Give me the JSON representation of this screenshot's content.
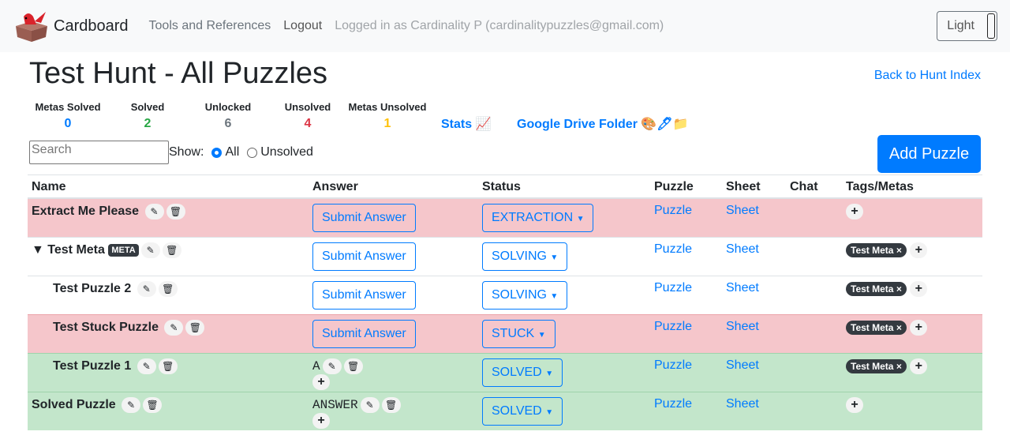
{
  "nav": {
    "brand": "Cardboard",
    "tools": "Tools and References",
    "logout": "Logout",
    "logged_in": "Logged in as Cardinality P (cardinalitypuzzles@gmail.com)",
    "theme": "Light"
  },
  "page": {
    "title": "Test Hunt - All Puzzles",
    "back": "Back to Hunt Index",
    "stats_link": "Stats 📈",
    "drive_link": "Google Drive Folder 🎨🖊📁",
    "add_puzzle": "Add Puzzle"
  },
  "stats": [
    {
      "label": "Metas Solved",
      "value": "0",
      "color": "#007bff"
    },
    {
      "label": "Solved",
      "value": "2",
      "color": "#28a745"
    },
    {
      "label": "Unlocked",
      "value": "6",
      "color": "#6c757d"
    },
    {
      "label": "Unsolved",
      "value": "4",
      "color": "#dc3545"
    },
    {
      "label": "Metas Unsolved",
      "value": "1",
      "color": "#ffc107"
    }
  ],
  "filter": {
    "placeholder": "Search",
    "show": "Show:",
    "all": "All",
    "unsolved": "Unsolved",
    "selected": "All"
  },
  "columns": [
    "Name",
    "Answer",
    "Status",
    "Puzzle",
    "Sheet",
    "Chat",
    "Tags/Metas"
  ],
  "rows": [
    {
      "name": "Extract Me Please",
      "meta": false,
      "indent": false,
      "answer": "",
      "status": "EXTRACTION",
      "tags": [],
      "row_color": "pink"
    },
    {
      "name": "▼ Test Meta",
      "meta": true,
      "meta_label": "META",
      "indent": false,
      "answer": "",
      "status": "SOLVING",
      "tags": [
        "Test Meta"
      ],
      "row_color": "white"
    },
    {
      "name": "Test Puzzle 2",
      "meta": false,
      "indent": true,
      "answer": "",
      "status": "SOLVING",
      "tags": [
        "Test Meta"
      ],
      "row_color": "white"
    },
    {
      "name": "Test Stuck Puzzle",
      "meta": false,
      "indent": true,
      "answer": "",
      "status": "STUCK",
      "tags": [
        "Test Meta"
      ],
      "row_color": "pink"
    },
    {
      "name": "Test Puzzle 1",
      "meta": false,
      "indent": true,
      "answer": "A",
      "status": "SOLVED",
      "tags": [
        "Test Meta"
      ],
      "row_color": "green"
    },
    {
      "name": "Solved Puzzle",
      "meta": false,
      "indent": false,
      "answer": "ANSWER",
      "status": "SOLVED",
      "tags": [],
      "row_color": "green"
    }
  ],
  "labels": {
    "submit": "Submit Answer",
    "puzzle": "Puzzle",
    "sheet": "Sheet",
    "tag_remove": "×",
    "add": "+"
  }
}
